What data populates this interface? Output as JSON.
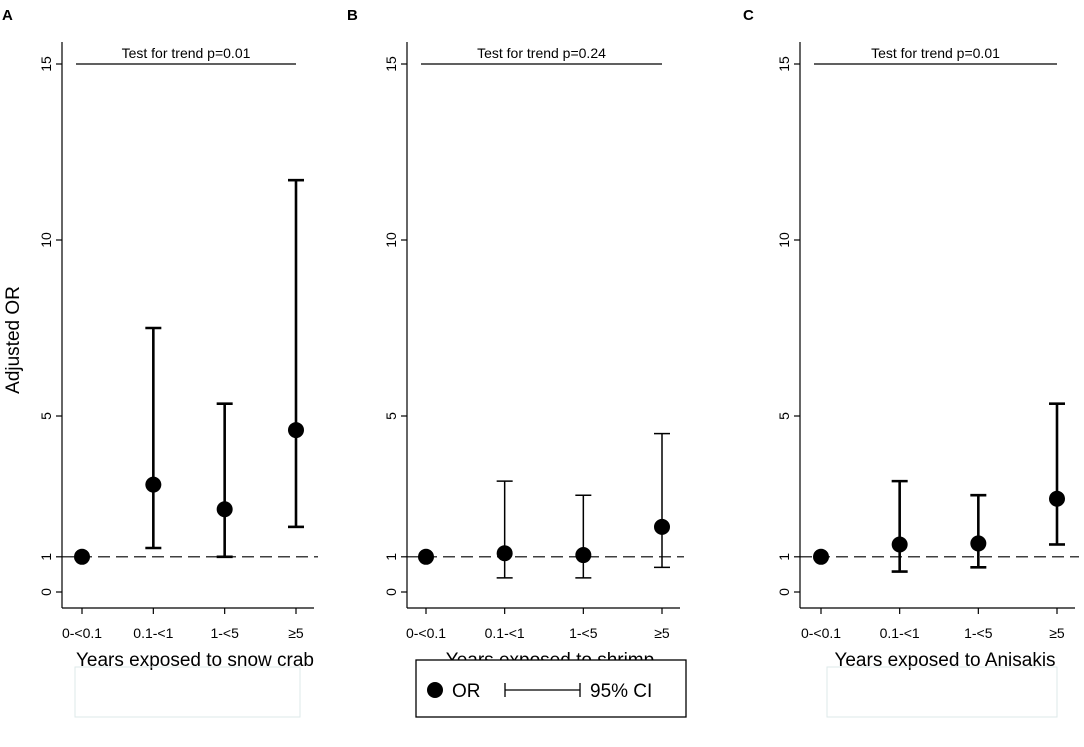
{
  "colors": {
    "background": "#ffffff",
    "ink": "#000000",
    "legend_placeholder_border": "#dde9ea"
  },
  "y_axis_title": "Adjusted OR",
  "legend": {
    "or_label": "OR",
    "ci_label": "95% CI"
  },
  "chart_data": [
    {
      "type": "scatter",
      "panel_label": "A",
      "title": "Test for trend p=0.01",
      "xlabel": "Years exposed to snow crab",
      "ylabel": "Adjusted OR",
      "categories": [
        "0-<0.1",
        "0.1-<1",
        "1-<5",
        "≥5"
      ],
      "values": [
        1.0,
        3.05,
        2.35,
        4.6
      ],
      "ci_lower": [
        1.0,
        1.25,
        1.0,
        1.85
      ],
      "ci_upper": [
        1.0,
        7.5,
        5.35,
        11.7
      ],
      "yticks": [
        0,
        1,
        5,
        10,
        15
      ],
      "ylim": [
        0,
        15
      ],
      "reference_line": 1,
      "error_bar_weight": "thick"
    },
    {
      "type": "scatter",
      "panel_label": "B",
      "title": "Test for trend p=0.24",
      "xlabel": "Years exposed to shrimp",
      "ylabel": "",
      "categories": [
        "0-<0.1",
        "0.1-<1",
        "1-<5",
        "≥5"
      ],
      "values": [
        1.0,
        1.1,
        1.05,
        1.85
      ],
      "ci_lower": [
        1.0,
        0.4,
        0.4,
        0.7
      ],
      "ci_upper": [
        1.0,
        3.15,
        2.75,
        4.5
      ],
      "yticks": [
        0,
        1,
        5,
        10,
        15
      ],
      "ylim": [
        0,
        15
      ],
      "reference_line": 1,
      "error_bar_weight": "thin"
    },
    {
      "type": "scatter",
      "panel_label": "C",
      "title": "Test for trend p=0.01",
      "xlabel": "Years exposed to Anisakis",
      "ylabel": "",
      "categories": [
        "0-<0.1",
        "0.1-<1",
        "1-<5",
        "≥5"
      ],
      "values": [
        1.0,
        1.35,
        1.38,
        2.65
      ],
      "ci_lower": [
        1.0,
        0.58,
        0.7,
        1.35
      ],
      "ci_upper": [
        1.0,
        3.15,
        2.75,
        5.35
      ],
      "yticks": [
        0,
        1,
        5,
        10,
        15
      ],
      "ylim": [
        0,
        15
      ],
      "reference_line": 1,
      "error_bar_weight": "thick"
    }
  ]
}
